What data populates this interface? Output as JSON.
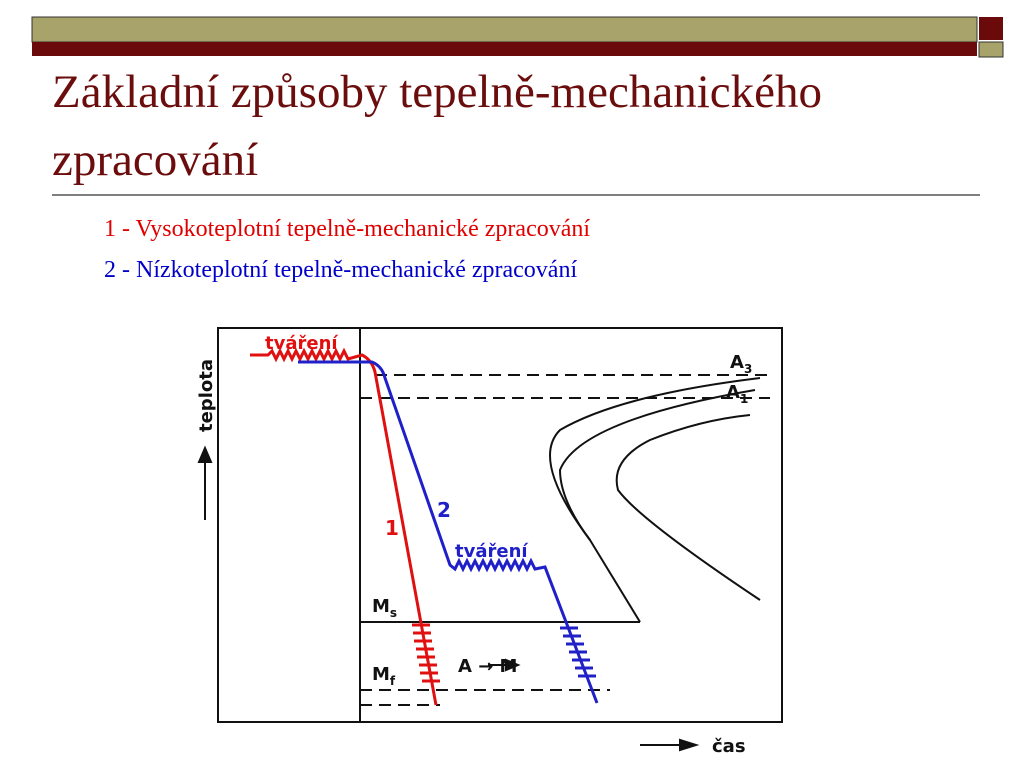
{
  "header": {
    "title": "Základní způsoby tepelně-mechanického zpracování"
  },
  "items": [
    "1 - Vysokoteplotní tepelně-mechanické zpracování",
    "2 - Nízkoteplotní tepelně-mechanické zpracování"
  ],
  "diagram": {
    "y_axis": "teplota",
    "x_axis": "čas",
    "forming_1": "tváření",
    "forming_2": "tváření",
    "curve_1": "1",
    "curve_2": "2",
    "a3": {
      "main": "A",
      "sub": "3"
    },
    "a1": {
      "main": "A",
      "sub": "1"
    },
    "ms": {
      "main": "M",
      "sub": "s"
    },
    "mf": {
      "main": "M",
      "sub": "f"
    },
    "transformation": "A → M"
  }
}
